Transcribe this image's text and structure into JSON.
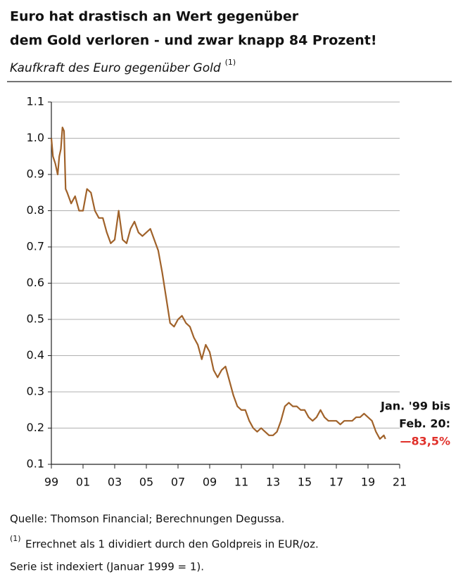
{
  "chart_data": {
    "type": "line",
    "title": [
      "Euro hat drastisch an Wert gegenüber",
      "dem Gold verloren - und zwar knapp 84 Prozent!"
    ],
    "subtitle": "Kaufkraft des Euro gegenüber Gold",
    "subtitle_note": "(1)",
    "x": [
      1999.0,
      1999.1,
      1999.25,
      1999.4,
      1999.5,
      1999.6,
      1999.7,
      1999.8,
      1999.9,
      2000.0,
      2000.25,
      2000.5,
      2000.75,
      2001.0,
      2001.25,
      2001.5,
      2001.75,
      2002.0,
      2002.25,
      2002.5,
      2002.75,
      2003.0,
      2003.25,
      2003.5,
      2003.75,
      2004.0,
      2004.25,
      2004.5,
      2004.75,
      2005.0,
      2005.25,
      2005.5,
      2005.75,
      2006.0,
      2006.25,
      2006.5,
      2006.75,
      2007.0,
      2007.25,
      2007.5,
      2007.75,
      2008.0,
      2008.25,
      2008.5,
      2008.75,
      2009.0,
      2009.25,
      2009.5,
      2009.75,
      2010.0,
      2010.25,
      2010.5,
      2010.75,
      2011.0,
      2011.25,
      2011.5,
      2011.75,
      2012.0,
      2012.25,
      2012.5,
      2012.75,
      2013.0,
      2013.25,
      2013.5,
      2013.75,
      2014.0,
      2014.25,
      2014.5,
      2014.75,
      2015.0,
      2015.25,
      2015.5,
      2015.75,
      2016.0,
      2016.25,
      2016.5,
      2016.75,
      2017.0,
      2017.25,
      2017.5,
      2017.75,
      2018.0,
      2018.25,
      2018.5,
      2018.75,
      2019.0,
      2019.25,
      2019.5,
      2019.75,
      2020.0,
      2020.1
    ],
    "series": [
      {
        "name": "Kaufkraft",
        "color": "#a0622a",
        "values": [
          1.0,
          0.95,
          0.93,
          0.9,
          0.95,
          0.97,
          1.03,
          1.02,
          0.86,
          0.85,
          0.82,
          0.84,
          0.8,
          0.8,
          0.86,
          0.85,
          0.8,
          0.78,
          0.78,
          0.74,
          0.71,
          0.72,
          0.8,
          0.72,
          0.71,
          0.75,
          0.77,
          0.74,
          0.73,
          0.74,
          0.75,
          0.72,
          0.69,
          0.63,
          0.56,
          0.49,
          0.48,
          0.5,
          0.51,
          0.49,
          0.48,
          0.45,
          0.43,
          0.39,
          0.43,
          0.41,
          0.36,
          0.34,
          0.36,
          0.37,
          0.33,
          0.29,
          0.26,
          0.25,
          0.25,
          0.22,
          0.2,
          0.19,
          0.2,
          0.19,
          0.18,
          0.18,
          0.19,
          0.22,
          0.26,
          0.27,
          0.26,
          0.26,
          0.25,
          0.25,
          0.23,
          0.22,
          0.23,
          0.25,
          0.23,
          0.22,
          0.22,
          0.22,
          0.21,
          0.22,
          0.22,
          0.22,
          0.23,
          0.23,
          0.24,
          0.23,
          0.22,
          0.19,
          0.17,
          0.18,
          0.17
        ]
      }
    ],
    "xlim": [
      1999,
      2021
    ],
    "xticks": [
      {
        "value": 1999,
        "label": "99"
      },
      {
        "value": 2001,
        "label": "01"
      },
      {
        "value": 2003,
        "label": "03"
      },
      {
        "value": 2005,
        "label": "05"
      },
      {
        "value": 2007,
        "label": "07"
      },
      {
        "value": 2009,
        "label": "09"
      },
      {
        "value": 2011,
        "label": "11"
      },
      {
        "value": 2013,
        "label": "13"
      },
      {
        "value": 2015,
        "label": "15"
      },
      {
        "value": 2017,
        "label": "17"
      },
      {
        "value": 2019,
        "label": "19"
      },
      {
        "value": 2021,
        "label": "21"
      }
    ],
    "ylim": [
      0.1,
      1.1
    ],
    "yticks": [
      0.1,
      0.2,
      0.3,
      0.4,
      0.5,
      0.6,
      0.7,
      0.8,
      0.9,
      {
        "value": 1,
        "label": "1.0"
      },
      1.1
    ],
    "grid": true,
    "annotations": [
      {
        "text": "Jan. '99 bis",
        "color": "#111111"
      },
      {
        "text": "Feb. 20:",
        "color": "#111111"
      },
      {
        "text": "—83,5%",
        "color": "#e0302a"
      }
    ],
    "source": "Quelle: Thomson Financial; Berechnungen Degussa.",
    "footnote_mark": "(1)",
    "footnotes": [
      "Errechnet als 1 dividiert durch den Goldpreis in EUR/oz.",
      "Serie ist indexiert (Januar 1999 = 1)."
    ]
  }
}
